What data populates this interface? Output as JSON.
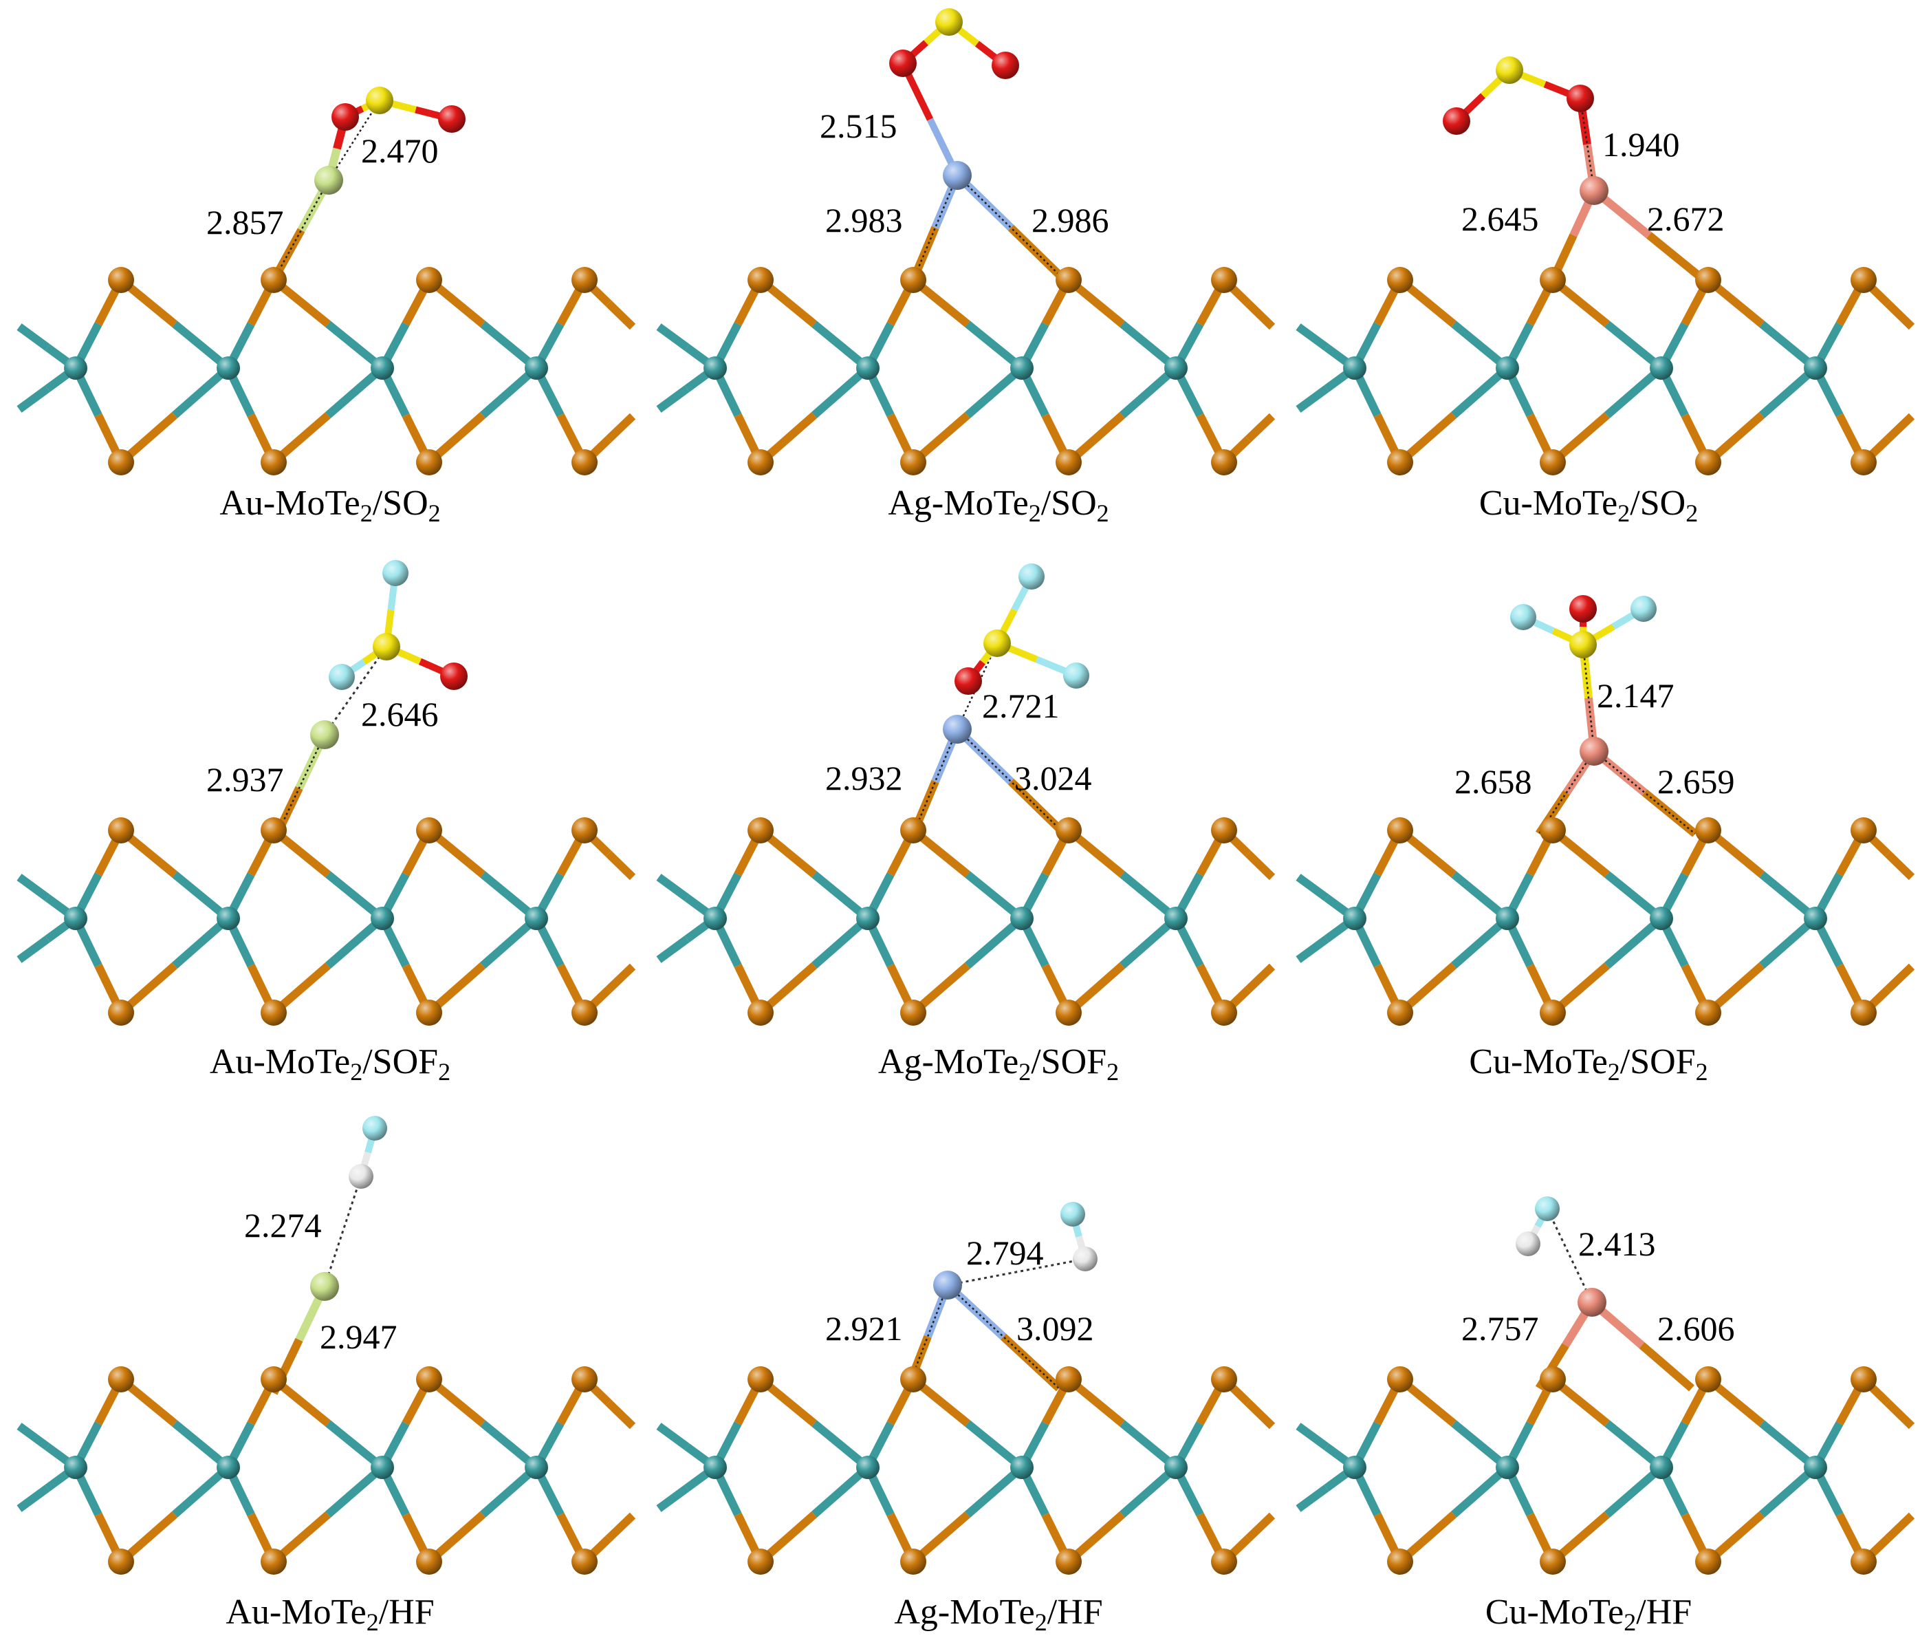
{
  "colors": {
    "Te": "#cd7a0c",
    "Mo": "#3a9a9c",
    "Au": "#c8e08a",
    "Ag": "#8fb0e6",
    "Cu": "#e88a78",
    "S": "#f0e010",
    "O": "#e01818",
    "F": "#9fe6ee",
    "H": "#e8e8e8"
  },
  "panels": [
    {
      "id": "au-so2",
      "caption": {
        "main": "Au-MoTe",
        "sub": "2",
        "tail": "/SO",
        "sub2": "2"
      },
      "distances": [
        "2.470",
        "2.857"
      ]
    },
    {
      "id": "ag-so2",
      "caption": {
        "main": "Ag-MoTe",
        "sub": "2",
        "tail": "/SO",
        "sub2": "2"
      },
      "distances": [
        "2.515",
        "2.983",
        "2.986"
      ]
    },
    {
      "id": "cu-so2",
      "caption": {
        "main": "Cu-MoTe",
        "sub": "2",
        "tail": "/SO",
        "sub2": "2"
      },
      "distances": [
        "1.940",
        "2.645",
        "2.672"
      ]
    },
    {
      "id": "au-sof2",
      "caption": {
        "main": "Au-MoTe",
        "sub": "2",
        "tail": "/SOF",
        "sub2": "2"
      },
      "distances": [
        "2.646",
        "2.937"
      ]
    },
    {
      "id": "ag-sof2",
      "caption": {
        "main": "Ag-MoTe",
        "sub": "2",
        "tail": "/SOF",
        "sub2": "2"
      },
      "distances": [
        "2.721",
        "2.932",
        "3.024"
      ]
    },
    {
      "id": "cu-sof2",
      "caption": {
        "main": "Cu-MoTe",
        "sub": "2",
        "tail": "/SOF",
        "sub2": "2"
      },
      "distances": [
        "2.147",
        "2.658",
        "2.659"
      ]
    },
    {
      "id": "au-hf",
      "caption": {
        "main": "Au-MoTe",
        "sub": "2",
        "tail": "/HF",
        "sub2": ""
      },
      "distances": [
        "2.274",
        "2.947"
      ]
    },
    {
      "id": "ag-hf",
      "caption": {
        "main": "Ag-MoTe",
        "sub": "2",
        "tail": "/HF",
        "sub2": ""
      },
      "distances": [
        "2.794",
        "2.921",
        "3.092"
      ]
    },
    {
      "id": "cu-hf",
      "caption": {
        "main": "Cu-MoTe",
        "sub": "2",
        "tail": "/HF",
        "sub2": ""
      },
      "distances": [
        "2.413",
        "2.757",
        "2.606"
      ]
    }
  ]
}
